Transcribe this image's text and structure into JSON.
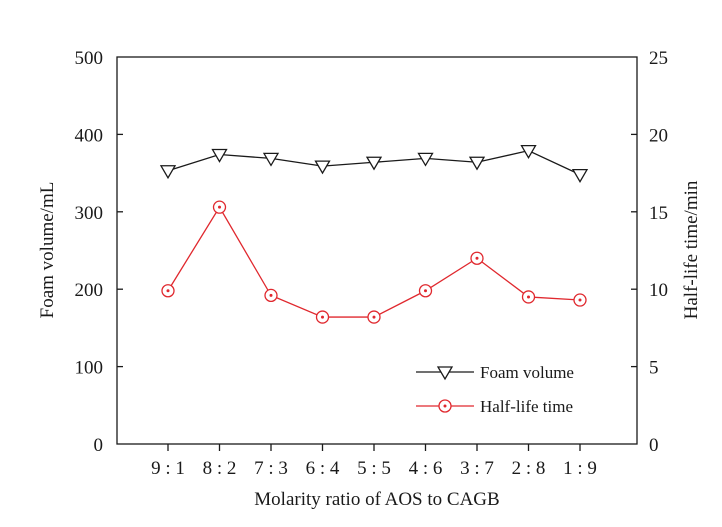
{
  "chart_data": {
    "type": "line",
    "categories": [
      "9 : 1",
      "8 : 2",
      "7 : 3",
      "6 : 4",
      "5 : 5",
      "4 : 6",
      "3 : 7",
      "2 : 8",
      "1 : 9"
    ],
    "xlabel": "Molarity ratio of AOS to CAGB",
    "ylabel_left": "Foam volume/mL",
    "ylabel_right": "Half-life time/min",
    "ylim_left": [
      0,
      500
    ],
    "ylim_right": [
      0,
      25
    ],
    "yticks_left": [
      0,
      100,
      200,
      300,
      400,
      500
    ],
    "yticks_right": [
      0,
      5,
      10,
      15,
      20,
      25
    ],
    "grid": false,
    "legend_position": "bottom-right",
    "series": [
      {
        "name": "Foam volume",
        "axis": "left",
        "color": "#1a1a1a",
        "marker": "triangle-down-open",
        "values": [
          353,
          374,
          369,
          359,
          364,
          369,
          364,
          379,
          348
        ]
      },
      {
        "name": "Half-life time",
        "axis": "right",
        "color": "#e0282e",
        "marker": "circle-dot-open",
        "values": [
          9.9,
          15.3,
          9.6,
          8.2,
          8.2,
          9.9,
          12.0,
          9.5,
          9.3
        ]
      }
    ]
  }
}
